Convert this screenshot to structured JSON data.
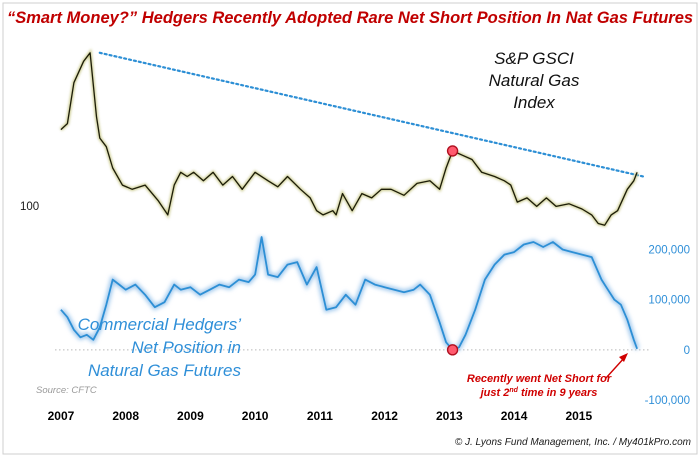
{
  "chart_data": [
    {
      "type": "line",
      "title": "“Smart Money?” Hedgers Recently Adopted Rare Net Short Position In Nat Gas Futures",
      "series": [
        {
          "name": "S&P GSCI Natural Gas Index",
          "label_lines": [
            "S&P GSCI",
            "Natural Gas",
            "Index"
          ],
          "color": "#1c1c08",
          "x": [
            2007.0,
            2007.1,
            2007.2,
            2007.35,
            2007.45,
            2007.55,
            2007.6,
            2007.7,
            2007.8,
            2007.95,
            2008.1,
            2008.3,
            2008.5,
            2008.65,
            2008.75,
            2008.85,
            2008.95,
            2009.05,
            2009.2,
            2009.35,
            2009.5,
            2009.65,
            2009.8,
            2010.0,
            2010.2,
            2010.35,
            2010.5,
            2010.7,
            2010.85,
            2010.95,
            2011.05,
            2011.2,
            2011.25,
            2011.35,
            2011.5,
            2011.65,
            2011.8,
            2011.95,
            2012.1,
            2012.3,
            2012.5,
            2012.7,
            2012.85,
            2012.95,
            2013.05,
            2013.2,
            2013.35,
            2013.5,
            2013.7,
            2013.85,
            2013.95,
            2014.05,
            2014.2,
            2014.35,
            2014.5,
            2014.65,
            2014.85,
            2015.05,
            2015.2,
            2015.3,
            2015.4,
            2015.5,
            2015.6,
            2015.75,
            2015.85,
            2015.9
          ],
          "y": [
            455,
            462,
            510,
            535,
            545,
            470,
            445,
            435,
            410,
            390,
            385,
            390,
            372,
            355,
            390,
            405,
            400,
            405,
            395,
            405,
            390,
            400,
            385,
            405,
            395,
            388,
            400,
            385,
            375,
            360,
            355,
            360,
            355,
            380,
            360,
            380,
            375,
            385,
            385,
            378,
            392,
            395,
            385,
            410,
            430,
            425,
            420,
            405,
            400,
            395,
            390,
            370,
            375,
            365,
            375,
            365,
            368,
            362,
            355,
            345,
            343,
            355,
            360,
            385,
            395,
            405
          ],
          "markers": [
            {
              "x": 2013.05,
              "y": 430
            }
          ]
        },
        {
          "name": "Trendline",
          "color": "#2d8fd5",
          "x": [
            2007.6,
            2016.0
          ],
          "y": [
            545,
            400
          ]
        }
      ],
      "ylabel": "",
      "ytick_label": "100",
      "ylim": [
        335,
        560
      ],
      "xlim": [
        2006.8,
        2016.1
      ]
    },
    {
      "type": "line",
      "series": [
        {
          "name": "Commercial Hedgers’ Net Position in Natural Gas Futures",
          "label_lines": [
            "Commercial Hedgers’",
            "Net Position in",
            "Natural Gas Futures"
          ],
          "color": "#2d8fd5",
          "x": [
            2007.0,
            2007.1,
            2007.2,
            2007.3,
            2007.4,
            2007.5,
            2007.6,
            2007.7,
            2007.8,
            2007.9,
            2008.0,
            2008.15,
            2008.3,
            2008.45,
            2008.6,
            2008.75,
            2008.85,
            2009.0,
            2009.15,
            2009.3,
            2009.45,
            2009.6,
            2009.75,
            2009.9,
            2010.0,
            2010.1,
            2010.2,
            2010.35,
            2010.5,
            2010.65,
            2010.8,
            2010.95,
            2011.1,
            2011.25,
            2011.4,
            2011.55,
            2011.7,
            2011.85,
            2012.0,
            2012.15,
            2012.3,
            2012.45,
            2012.55,
            2012.7,
            2012.85,
            2012.95,
            2013.05,
            2013.15,
            2013.25,
            2013.4,
            2013.55,
            2013.7,
            2013.85,
            2014.0,
            2014.15,
            2014.3,
            2014.45,
            2014.6,
            2014.75,
            2014.9,
            2015.05,
            2015.2,
            2015.35,
            2015.45,
            2015.55,
            2015.65,
            2015.75,
            2015.85,
            2015.9
          ],
          "y": [
            80000,
            65000,
            40000,
            25000,
            30000,
            20000,
            45000,
            90000,
            140000,
            130000,
            120000,
            130000,
            110000,
            85000,
            95000,
            130000,
            120000,
            125000,
            110000,
            120000,
            130000,
            125000,
            140000,
            135000,
            150000,
            225000,
            150000,
            145000,
            170000,
            175000,
            130000,
            165000,
            80000,
            85000,
            110000,
            90000,
            140000,
            130000,
            125000,
            120000,
            115000,
            120000,
            130000,
            110000,
            55000,
            15000,
            0,
            5000,
            30000,
            80000,
            140000,
            170000,
            190000,
            195000,
            210000,
            215000,
            205000,
            215000,
            200000,
            195000,
            190000,
            185000,
            140000,
            120000,
            100000,
            90000,
            60000,
            20000,
            2000
          ],
          "markers": [
            {
              "x": 2013.05,
              "y": 0
            }
          ]
        }
      ],
      "y2_tick_labels": [
        "200,000",
        "100,000",
        "0",
        "-100,000"
      ],
      "y2_ticks": [
        200000,
        100000,
        0,
        -100000
      ],
      "ylim": [
        -120000,
        235000
      ],
      "zero_line": true,
      "x_tick_labels": [
        "2007",
        "2008",
        "2009",
        "2010",
        "2011",
        "2012",
        "2013",
        "2014",
        "2015"
      ],
      "x_ticks": [
        2007,
        2008,
        2009,
        2010,
        2011,
        2012,
        2013,
        2014,
        2015
      ],
      "annotation": {
        "line1_pre": "Recently went Net Short for",
        "line2_pre": "just 2",
        "line2_sup": "nd",
        "line2_post": " time in 9 years",
        "color": "#d00000",
        "points_to": {
          "x": 2015.85,
          "y": 0
        }
      }
    }
  ],
  "footer": {
    "source": "Source: CFTC",
    "credit": "© J. Lyons Fund Management, Inc. / My401kPro.com"
  }
}
